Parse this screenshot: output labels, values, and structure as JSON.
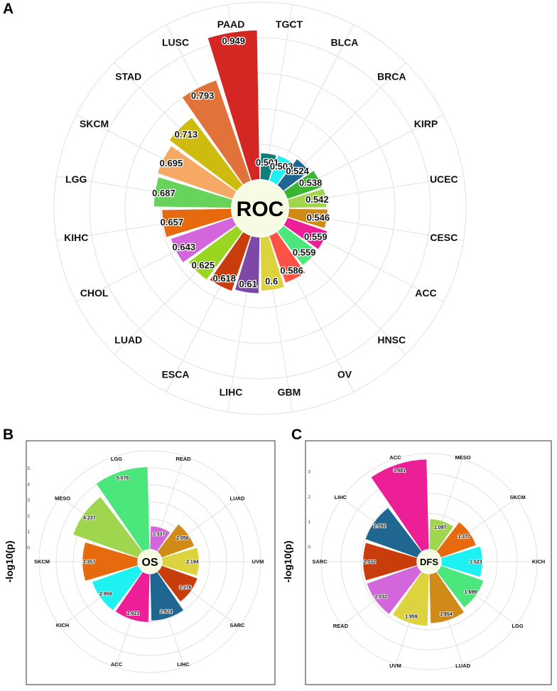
{
  "panels": [
    {
      "letter": "A",
      "center_label": "ROC",
      "chart_data": {
        "type": "bar",
        "coord": "polar",
        "categories": [
          "TGCT",
          "BLCA",
          "BRCA",
          "KIRP",
          "UCEC",
          "CESC",
          "ACC",
          "HNSC",
          "OV",
          "GBM",
          "LIHC",
          "ESCA",
          "LUAD",
          "CHOL",
          "KIHC",
          "LGG",
          "SKCM",
          "STAD",
          "LUSC",
          "PAAD"
        ],
        "values": [
          0.501,
          0.503,
          0.524,
          0.538,
          0.542,
          0.546,
          0.559,
          0.559,
          0.586,
          0.6,
          0.61,
          0.618,
          0.625,
          0.643,
          0.657,
          0.687,
          0.695,
          0.713,
          0.793,
          0.949
        ],
        "value_labels": [
          "0.501",
          "0.503",
          "0.524",
          "0.538",
          "0.542",
          "0.546",
          "0.559",
          "0.559",
          "0.586",
          "0.6",
          "0.61",
          "0.618",
          "0.625",
          "0.643",
          "0.657",
          "0.687",
          "0.695",
          "0.713",
          "0.793",
          "0.949"
        ],
        "colors": [
          "#0f7f7c",
          "#1ef1f1",
          "#1f6690",
          "#3bb631",
          "#9fd64e",
          "#cf8a18",
          "#ec1f97",
          "#4be67c",
          "#ff5146",
          "#ddd33f",
          "#7d48a6",
          "#c93d0c",
          "#9ad521",
          "#d466db",
          "#e86a0f",
          "#68d35a",
          "#f6a964",
          "#cdbc0e",
          "#e0723a",
          "#d42723"
        ],
        "ylim": [
          0.3,
          1.0
        ],
        "grid": true
      }
    },
    {
      "letter": "B",
      "center_label": "OS",
      "chart_data": {
        "type": "bar",
        "coord": "polar",
        "categories": [
          "READ",
          "LUAD",
          "UVM",
          "SARC",
          "LIHC",
          "ACC",
          "KICH",
          "SKCM",
          "MESO",
          "LGG"
        ],
        "values": [
          1.337,
          2.056,
          2.194,
          2.276,
          2.824,
          2.921,
          2.959,
          3.357,
          4.237,
          5.076
        ],
        "value_labels": [
          "1.337",
          "2.056",
          "2.194",
          "2.276",
          "2.824",
          "2.921",
          "2.959",
          "3.357",
          "4.237",
          "5.076"
        ],
        "colors": [
          "#d466db",
          "#cf8a18",
          "#ddd33f",
          "#c93d0c",
          "#1f6690",
          "#ec1f97",
          "#1ef1f1",
          "#e86a0f",
          "#9fd64e",
          "#4be67c"
        ],
        "ylabel": "-log10(p)",
        "yticks": [
          "0",
          "1",
          "2",
          "3",
          "4",
          "5"
        ],
        "ylim": [
          -0.9,
          5.3
        ],
        "grid": true
      }
    },
    {
      "letter": "C",
      "center_label": "DFS",
      "chart_data": {
        "type": "bar",
        "coord": "polar",
        "categories": [
          "MESO",
          "SKCM",
          "KICH",
          "LGG",
          "LUAD",
          "UVM",
          "READ",
          "SARC",
          "LIHC",
          "ACC"
        ],
        "values": [
          1.097,
          1.377,
          1.523,
          1.699,
          1.854,
          1.959,
          2.032,
          2.032,
          2.092,
          3.481
        ],
        "value_labels": [
          "1.097",
          "1.377",
          "1.523",
          "1.699",
          "1.854",
          "1.959",
          "2.032",
          "2.032",
          "2.092",
          "3.481"
        ],
        "colors": [
          "#9fd64e",
          "#e86a0f",
          "#1ef1f1",
          "#4be67c",
          "#cf8a18",
          "#ddd33f",
          "#d466db",
          "#c93d0c",
          "#1f6690",
          "#ec1f97"
        ],
        "ylabel": "-log10(p)",
        "yticks": [
          "0",
          "1",
          "2",
          "3"
        ],
        "ylim": [
          -0.6,
          3.6
        ],
        "grid": true
      }
    }
  ]
}
